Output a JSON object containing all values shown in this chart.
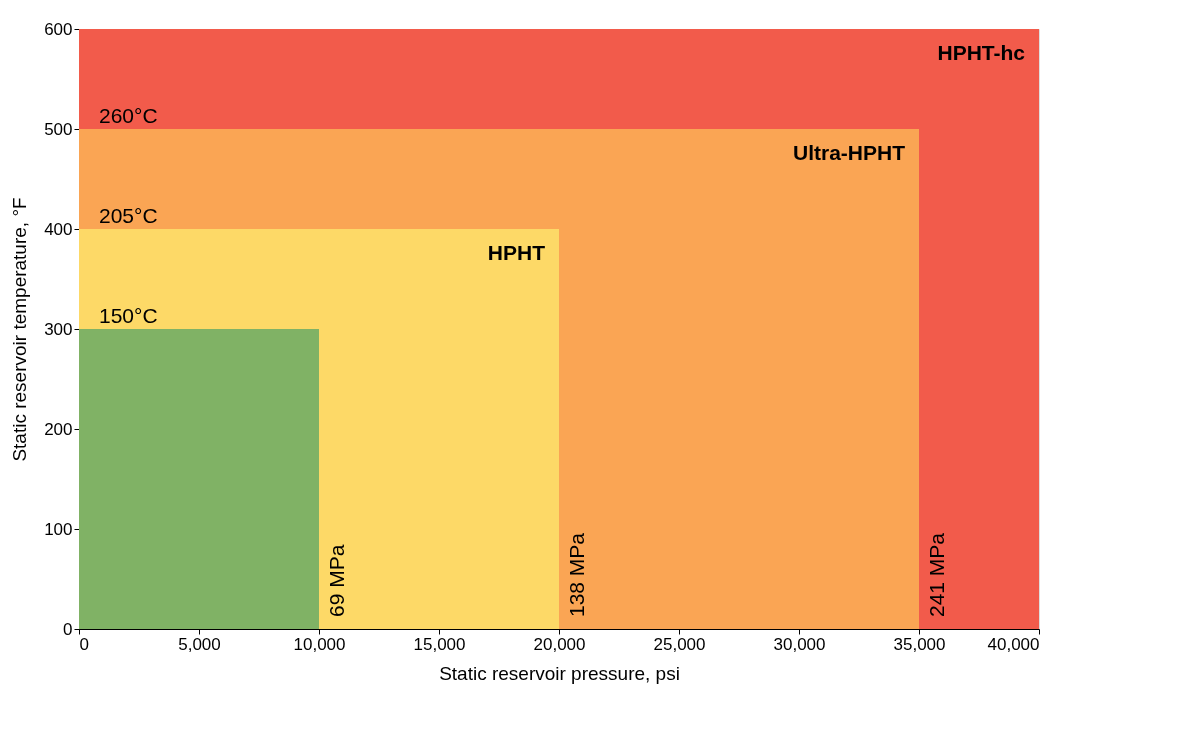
{
  "chart_data": {
    "type": "area",
    "xlabel": "Static reservoir pressure, psi",
    "ylabel": "Static reservoir temperature, °F",
    "series": [
      {
        "name": "HPHT-hc",
        "color": "#f25b4b",
        "x": [
          0,
          40000
        ],
        "values": [
          600,
          600
        ]
      },
      {
        "name": "Ultra-HPHT",
        "color": "#faa554",
        "x": [
          0,
          35000
        ],
        "values": [
          500,
          500
        ]
      },
      {
        "name": "HPHT",
        "color": "#fdd967",
        "x": [
          0,
          20000
        ],
        "values": [
          400,
          400
        ]
      },
      {
        "color": "#80b265",
        "x": [
          0,
          10000
        ],
        "values": [
          300,
          300
        ]
      }
    ],
    "annotations": [
      {
        "text": "260°C",
        "x": 0,
        "y": 500
      },
      {
        "text": "205°C",
        "x": 0,
        "y": 400
      },
      {
        "text": "150°C",
        "x": 0,
        "y": 300
      },
      {
        "text": "69 MPa",
        "x": 10000,
        "y": 0
      },
      {
        "text": "138 MPa",
        "x": 20000,
        "y": 0
      },
      {
        "text": "241 MPa",
        "x": 35000,
        "y": 0
      }
    ],
    "xlim": [
      0,
      40000
    ],
    "xticks": [
      0,
      {
        "value": 5000,
        "label": "5,000"
      },
      {
        "value": 10000,
        "label": "10,000"
      },
      {
        "value": 15000,
        "label": "15,000"
      },
      {
        "value": 20000,
        "label": "20,000"
      },
      {
        "value": 25000,
        "label": "25,000"
      },
      {
        "value": 30000,
        "label": "30,000"
      },
      {
        "value": 35000,
        "label": "35,000"
      },
      {
        "value": 40000,
        "label": "40,000"
      }
    ],
    "ylim": [
      0,
      600
    ],
    "yticks": [
      0,
      100,
      200,
      300,
      400,
      500,
      600
    ],
    "grid": false
  }
}
